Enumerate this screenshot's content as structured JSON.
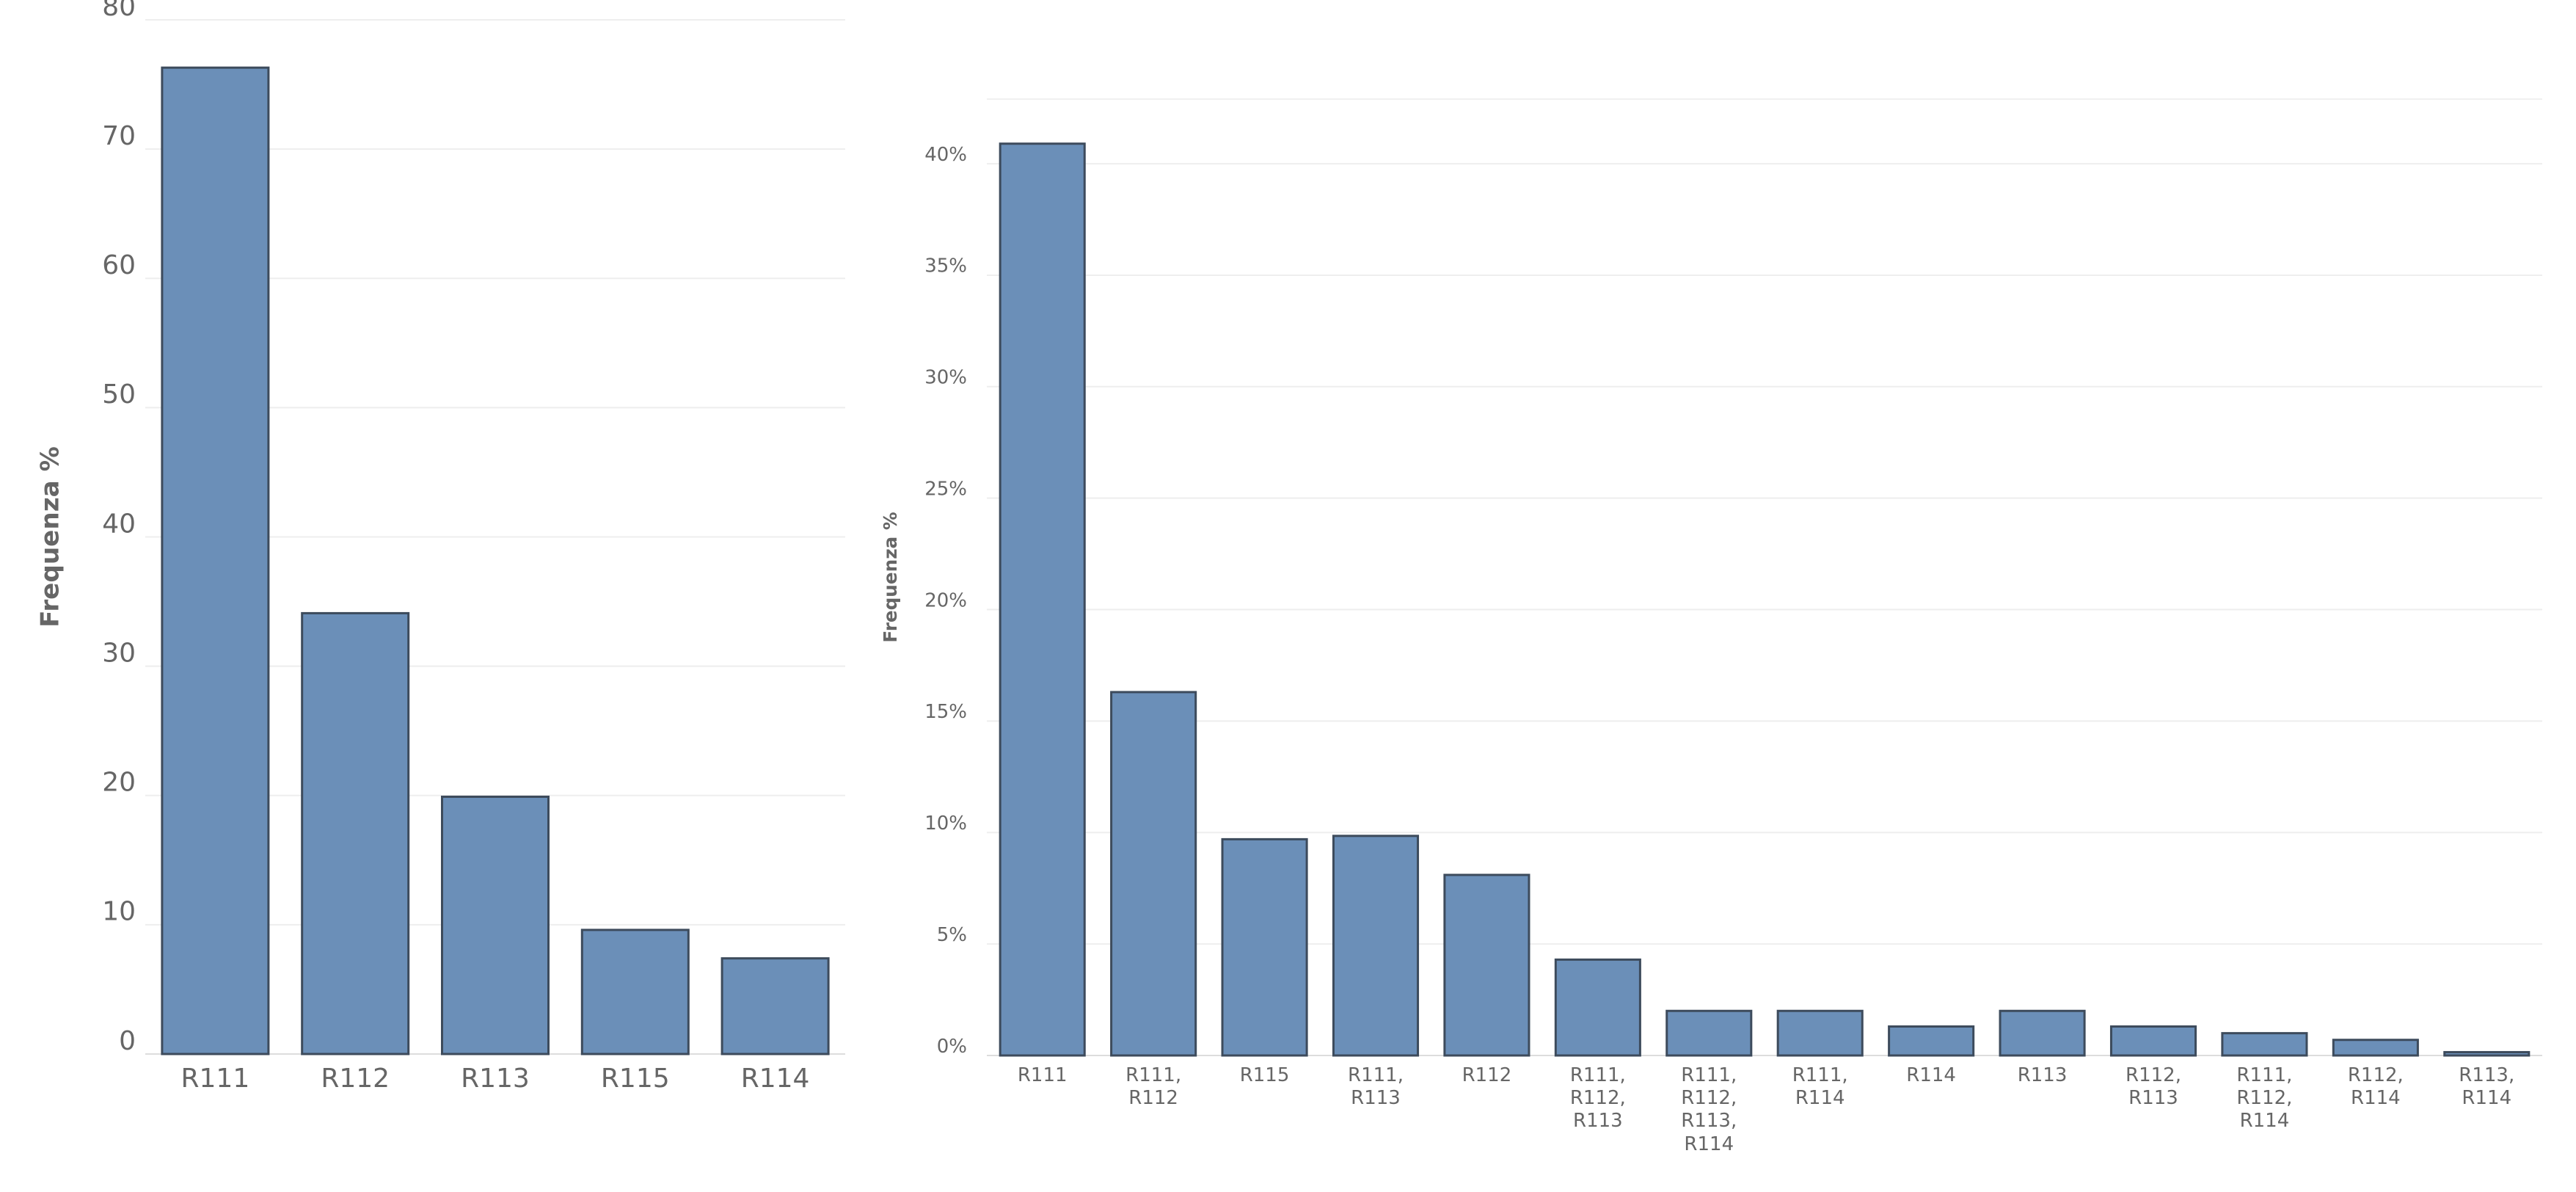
{
  "chart_data": [
    {
      "type": "bar",
      "y_label": "Frequenza %",
      "categories": [
        "R111",
        "R112",
        "R113",
        "R115",
        "R114"
      ],
      "values": [
        76.3,
        34.1,
        19.9,
        9.6,
        7.4
      ],
      "color": "#6b8fb8",
      "ylim": [
        0,
        80
      ],
      "yticks": [
        0,
        10,
        20,
        30,
        40,
        50,
        60,
        70,
        80
      ],
      "grid": true
    },
    {
      "type": "bar",
      "y_label": "Frequenza %",
      "categories": [
        "R111",
        "R111, R112",
        "R115",
        "R111, R113",
        "R112",
        "R111, R112, R113",
        "R111, R112, R113, R114",
        "R111, R114",
        "R114",
        "R113",
        "R112, R113",
        "R111, R112, R114",
        "R112, R114",
        "R113, R114"
      ],
      "values": [
        40.9,
        16.3,
        9.7,
        9.85,
        8.1,
        4.3,
        2.0,
        2.0,
        1.3,
        2.0,
        1.3,
        1.0,
        0.7,
        0.15
      ],
      "color": "#6b8fb8",
      "ylim": [
        0,
        42.9
      ],
      "yticks": [
        {
          "value": 0,
          "label": "0%"
        },
        {
          "value": 5,
          "label": "5%"
        },
        {
          "value": 10,
          "label": "10%"
        },
        {
          "value": 15,
          "label": "15%"
        },
        {
          "value": 20,
          "label": "20%"
        },
        {
          "value": 25,
          "label": "25%"
        },
        {
          "value": 30,
          "label": "30%"
        },
        {
          "value": 35,
          "label": "35%"
        },
        {
          "value": 40,
          "label": "40%"
        }
      ],
      "grid": true
    }
  ]
}
